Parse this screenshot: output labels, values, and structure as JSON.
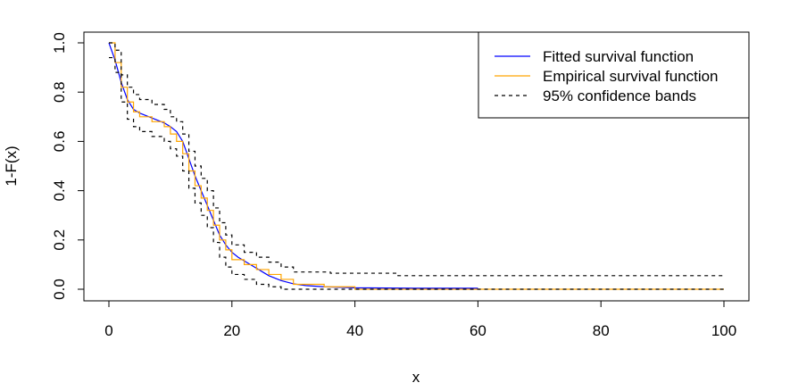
{
  "chart_data": {
    "type": "line",
    "title": "",
    "xlabel": "x",
    "ylabel": "1-F(x)",
    "xlim": [
      0,
      100
    ],
    "ylim": [
      0,
      1
    ],
    "x_ticks": [
      0,
      20,
      40,
      60,
      80,
      100
    ],
    "x_tick_labels": [
      "0",
      "20",
      "40",
      "60",
      "80",
      "100"
    ],
    "y_ticks": [
      0,
      0.2,
      0.4,
      0.6,
      0.8,
      1.0
    ],
    "y_tick_labels": [
      "0.0",
      "0.2",
      "0.4",
      "0.6",
      "0.8",
      "1.0"
    ],
    "grid": false,
    "legend_position": "top-right",
    "series": [
      {
        "name": "Fitted survival function",
        "color": "#0000ff",
        "style": "solid",
        "step": false,
        "x": [
          0,
          1,
          2,
          3,
          4,
          5,
          6,
          7,
          8,
          9,
          10,
          11,
          12,
          13,
          14,
          15,
          16,
          17,
          18,
          19,
          20,
          21,
          22,
          23,
          24,
          25,
          26,
          28,
          30,
          32,
          35,
          40,
          50,
          60
        ],
        "y": [
          1.0,
          0.93,
          0.84,
          0.77,
          0.73,
          0.715,
          0.705,
          0.695,
          0.685,
          0.675,
          0.66,
          0.64,
          0.6,
          0.53,
          0.46,
          0.4,
          0.34,
          0.28,
          0.22,
          0.18,
          0.15,
          0.13,
          0.115,
          0.1,
          0.085,
          0.07,
          0.055,
          0.035,
          0.022,
          0.015,
          0.01,
          0.006,
          0.004,
          0.004
        ]
      },
      {
        "name": "Empirical survival function",
        "color": "#ffa500",
        "style": "solid",
        "step": true,
        "x": [
          0,
          1,
          2,
          3,
          4,
          5,
          7,
          9,
          10,
          11,
          12,
          13,
          14,
          15,
          16,
          17,
          18,
          19,
          20,
          22,
          24,
          26,
          28,
          30,
          35,
          40,
          100
        ],
        "y": [
          1.0,
          0.92,
          0.82,
          0.76,
          0.72,
          0.7,
          0.68,
          0.66,
          0.63,
          0.6,
          0.55,
          0.48,
          0.42,
          0.37,
          0.32,
          0.26,
          0.2,
          0.16,
          0.12,
          0.1,
          0.08,
          0.06,
          0.04,
          0.02,
          0.01,
          0.0,
          0.0
        ]
      },
      {
        "name": "95% confidence bands",
        "color": "#000000",
        "style": "dashed",
        "step": true,
        "x": [
          0,
          1,
          2,
          3,
          4,
          5,
          7,
          9,
          10,
          11,
          12,
          13,
          14,
          15,
          16,
          17,
          18,
          19,
          20,
          22,
          24,
          26,
          28,
          30,
          36,
          47,
          100
        ],
        "y": [
          1.0,
          0.97,
          0.87,
          0.82,
          0.79,
          0.77,
          0.75,
          0.73,
          0.7,
          0.68,
          0.63,
          0.56,
          0.5,
          0.45,
          0.4,
          0.33,
          0.27,
          0.22,
          0.18,
          0.15,
          0.13,
          0.11,
          0.09,
          0.07,
          0.065,
          0.055,
          0.055
        ]
      },
      {
        "name": "95% confidence bands (lower)",
        "color": "#000000",
        "style": "dashed",
        "step": true,
        "x": [
          0,
          1,
          2,
          3,
          4,
          5,
          7,
          9,
          10,
          11,
          12,
          13,
          14,
          15,
          16,
          17,
          18,
          19,
          20,
          22,
          24,
          26,
          28,
          100
        ],
        "y": [
          0.94,
          0.88,
          0.76,
          0.69,
          0.66,
          0.64,
          0.62,
          0.6,
          0.57,
          0.54,
          0.48,
          0.41,
          0.35,
          0.3,
          0.25,
          0.19,
          0.13,
          0.09,
          0.06,
          0.04,
          0.02,
          0.01,
          0.0,
          0.0
        ]
      }
    ],
    "legend": [
      {
        "label": "Fitted survival function",
        "color": "#0000ff",
        "style": "solid"
      },
      {
        "label": "Empirical survival function",
        "color": "#ffa500",
        "style": "solid"
      },
      {
        "label": "95% confidence bands",
        "color": "#000000",
        "style": "dashed"
      }
    ]
  }
}
